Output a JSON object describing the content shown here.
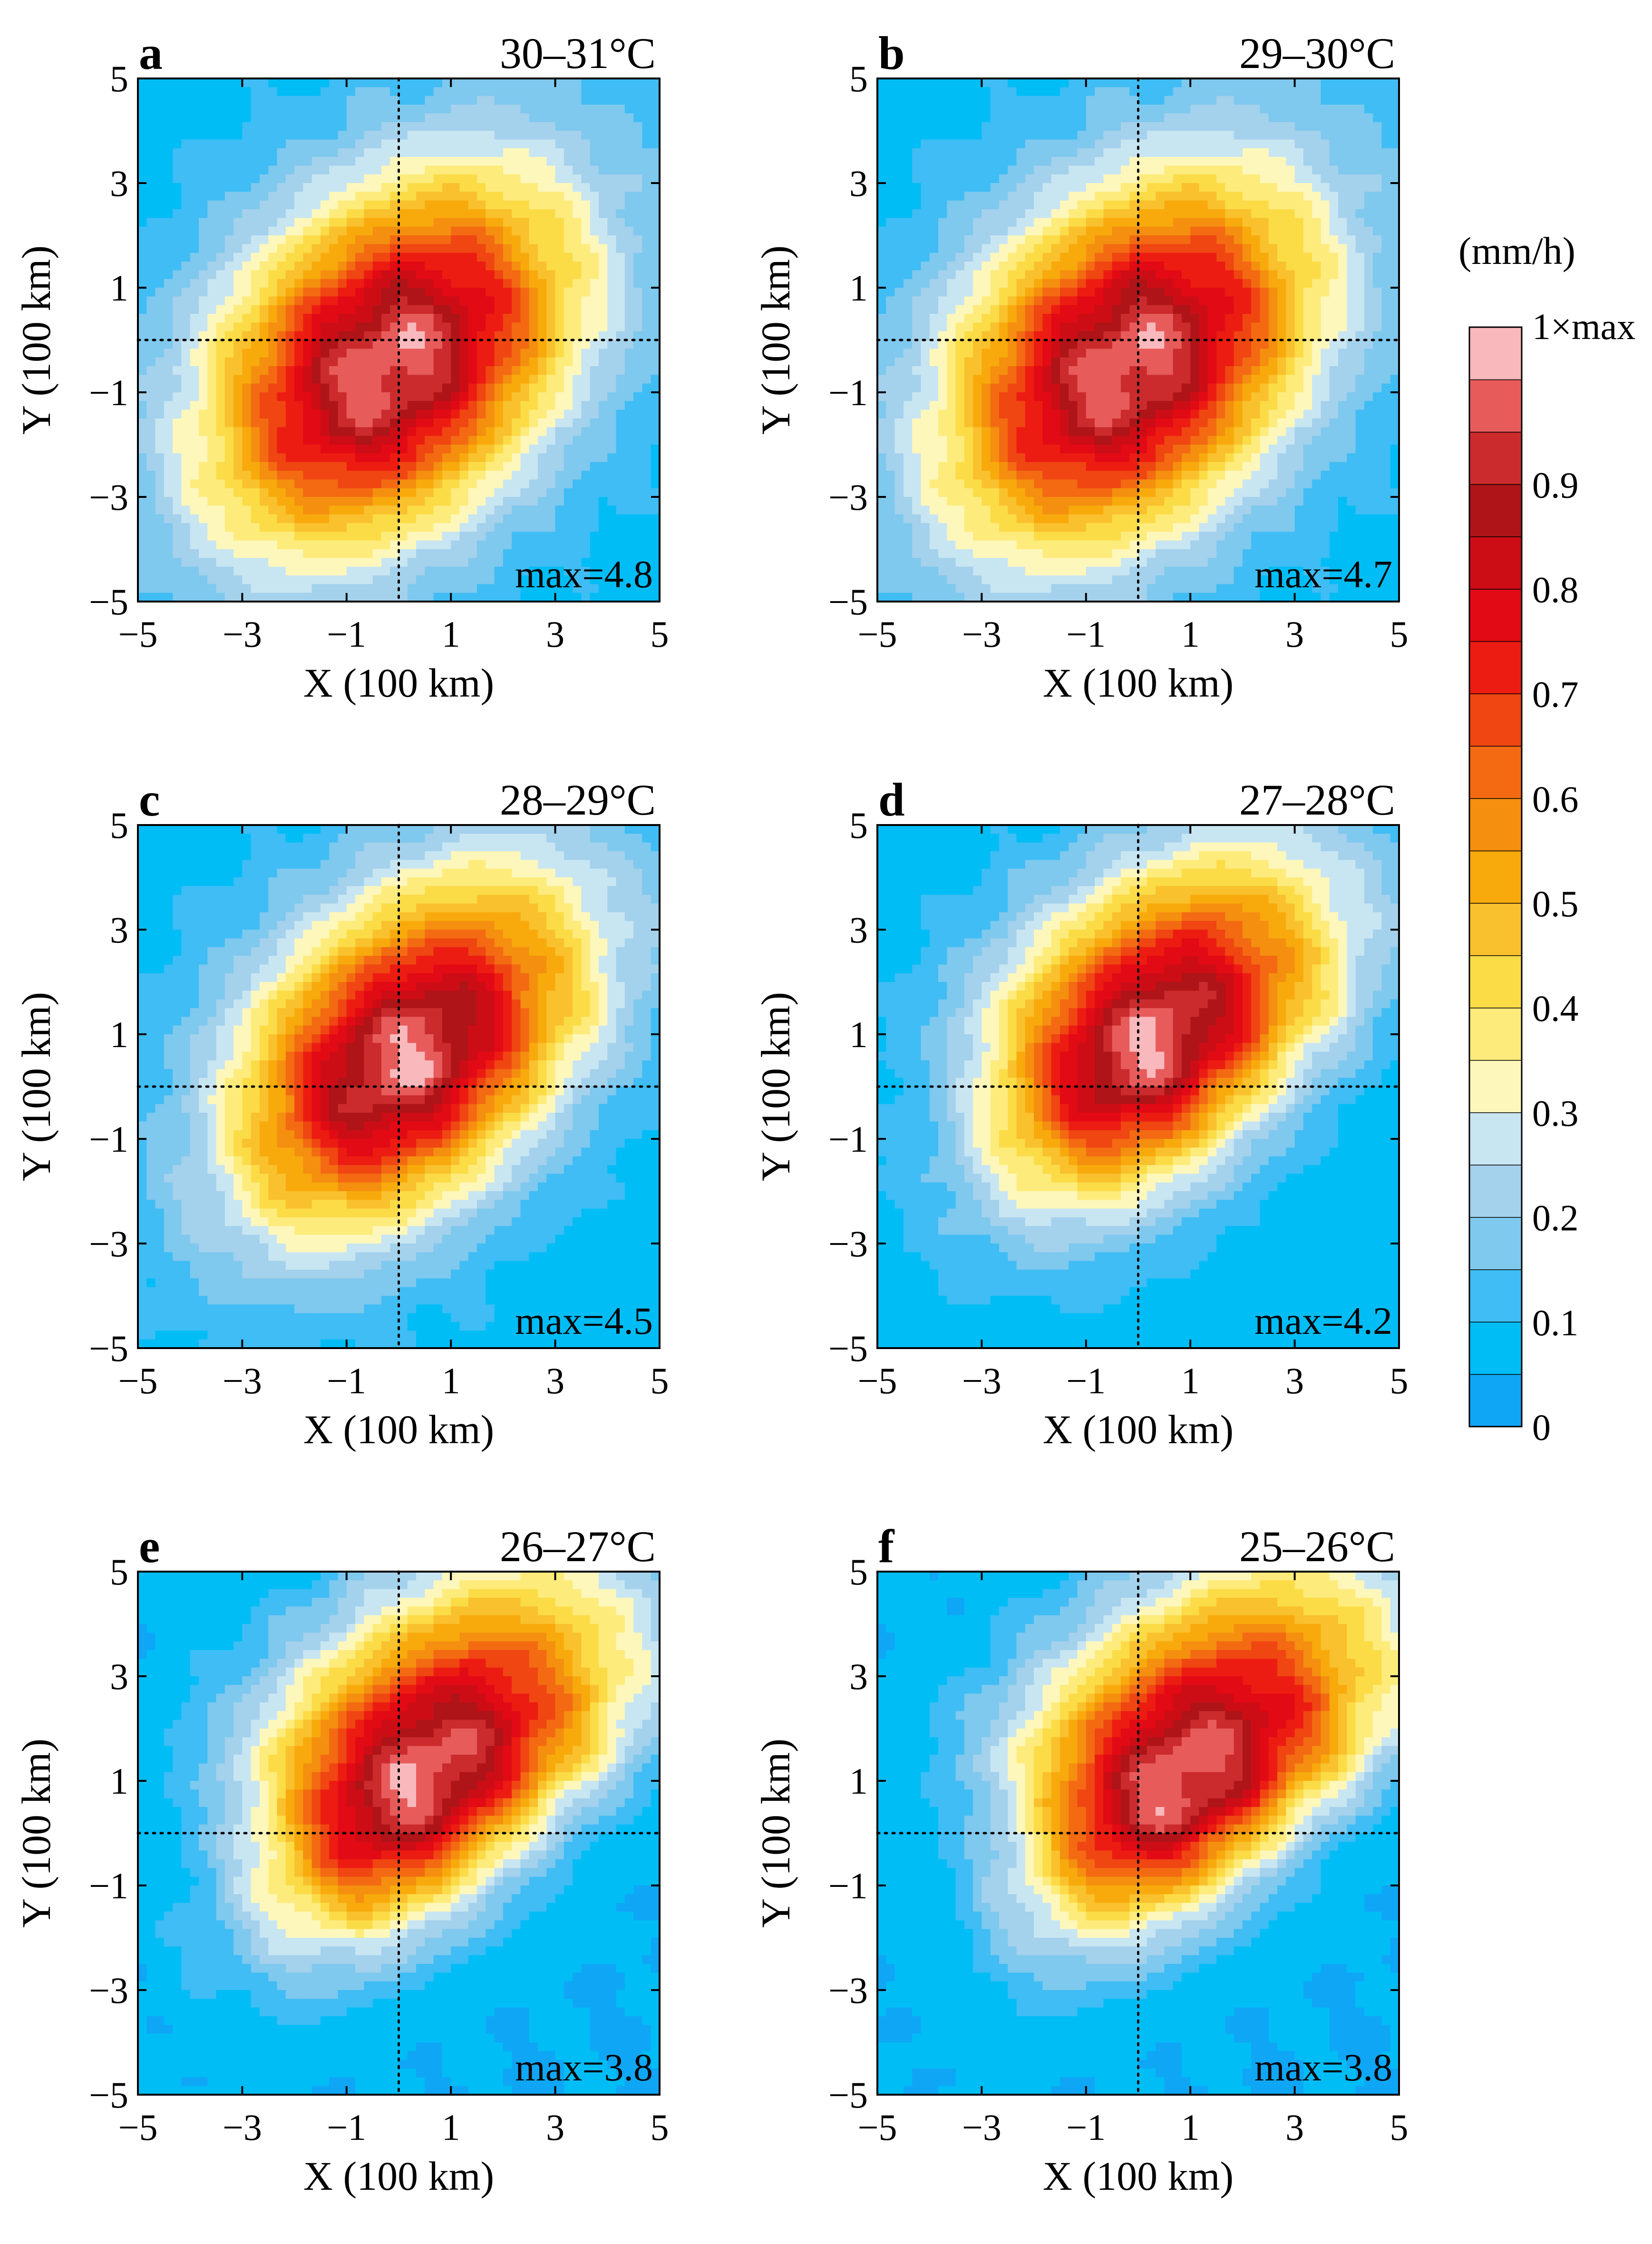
{
  "figure": {
    "colorbar": {
      "unit_label": "(mm/h)",
      "top_label": "1×max",
      "tick_labels": [
        "0.9",
        "0.8",
        "0.7",
        "0.6",
        "0.5",
        "0.4",
        "0.3",
        "0.2",
        "0.1",
        "0"
      ],
      "tick_values": [
        0.9,
        0.8,
        0.7,
        0.6,
        0.5,
        0.4,
        0.3,
        0.2,
        0.1,
        0.0
      ],
      "levels": [
        0.0,
        0.05,
        0.1,
        0.15,
        0.2,
        0.25,
        0.3,
        0.35,
        0.4,
        0.45,
        0.5,
        0.55,
        0.6,
        0.65,
        0.7,
        0.75,
        0.8,
        0.85,
        0.9,
        0.95,
        1.0
      ],
      "colors": [
        "#10a6f6",
        "#00bdf6",
        "#3fbdf4",
        "#7fc8ee",
        "#a4d1ec",
        "#c8e5f2",
        "#fef7bb",
        "#fdeb7c",
        "#fbdc47",
        "#f9c12d",
        "#f8aa0c",
        "#f58f0f",
        "#f36a12",
        "#ef4612",
        "#ed1c12",
        "#e20a14",
        "#cd0d16",
        "#ae1418",
        "#cb2b2c",
        "#e85b5b",
        "#f9b9bc"
      ]
    }
  },
  "chart_data": [
    {
      "type": "contour",
      "panel": "a",
      "title": "30–31°C",
      "max_label": "max=4.8",
      "max_value": 4.8,
      "xlabel": "X (100 km)",
      "ylabel": "Y (100 km)",
      "xlim": [
        -5,
        5
      ],
      "ylim": [
        -5,
        5
      ],
      "x_ticks": [
        -5,
        -3,
        -1,
        1,
        3,
        5
      ],
      "y_ticks": [
        -5,
        -3,
        -1,
        1,
        3,
        5
      ],
      "x_tick_labels": [
        "−5",
        "−3",
        "−1",
        "1",
        "3",
        "5"
      ],
      "y_tick_labels": [
        "−5",
        "−3",
        "−1",
        "1",
        "3",
        "5"
      ],
      "reference_lines": {
        "x": 0,
        "y": 0
      },
      "peak": {
        "x": -0.2,
        "y": -0.5
      },
      "spread": {
        "sx": 2.5,
        "sy": 2.3,
        "tilt_deg": 45,
        "rho": 0.25,
        "skew_up": 0.05
      },
      "background": 0.08
    },
    {
      "type": "contour",
      "panel": "b",
      "title": "29–30°C",
      "max_label": "max=4.7",
      "max_value": 4.7,
      "xlabel": "X (100 km)",
      "ylabel": "Y (100 km)",
      "xlim": [
        -5,
        5
      ],
      "ylim": [
        -5,
        5
      ],
      "x_ticks": [
        -5,
        -3,
        -1,
        1,
        3,
        5
      ],
      "y_ticks": [
        -5,
        -3,
        -1,
        1,
        3,
        5
      ],
      "x_tick_labels": [
        "−5",
        "−3",
        "−1",
        "1",
        "3",
        "5"
      ],
      "y_tick_labels": [
        "−5",
        "−3",
        "−1",
        "1",
        "3",
        "5"
      ],
      "reference_lines": {
        "x": 0,
        "y": 0
      },
      "peak": {
        "x": -0.2,
        "y": -0.5
      },
      "spread": {
        "sx": 2.5,
        "sy": 2.4,
        "tilt_deg": 45,
        "rho": 0.25,
        "skew_up": 0.05
      },
      "background": 0.08
    },
    {
      "type": "contour",
      "panel": "c",
      "title": "28–29°C",
      "max_label": "max=4.5",
      "max_value": 4.5,
      "xlabel": "X (100 km)",
      "ylabel": "Y (100 km)",
      "xlim": [
        -5,
        5
      ],
      "ylim": [
        -5,
        5
      ],
      "x_ticks": [
        -5,
        -3,
        -1,
        1,
        3,
        5
      ],
      "y_ticks": [
        -5,
        -3,
        -1,
        1,
        3,
        5
      ],
      "x_tick_labels": [
        "−5",
        "−3",
        "−1",
        "1",
        "3",
        "5"
      ],
      "y_tick_labels": [
        "−5",
        "−3",
        "−1",
        "1",
        "3",
        "5"
      ],
      "reference_lines": {
        "x": 0,
        "y": 0
      },
      "peak": {
        "x": 0.1,
        "y": 0.5
      },
      "spread": {
        "sx": 2.3,
        "sy": 2.8,
        "tilt_deg": 45,
        "rho": 0.3,
        "skew_up": 0.1
      },
      "background": 0.08
    },
    {
      "type": "contour",
      "panel": "d",
      "title": "27–28°C",
      "max_label": "max=4.2",
      "max_value": 4.2,
      "xlabel": "X (100 km)",
      "ylabel": "Y (100 km)",
      "xlim": [
        -5,
        5
      ],
      "ylim": [
        -5,
        5
      ],
      "x_ticks": [
        -5,
        -3,
        -1,
        1,
        3,
        5
      ],
      "y_ticks": [
        -5,
        -3,
        -1,
        1,
        3,
        5
      ],
      "x_tick_labels": [
        "−5",
        "−3",
        "−1",
        "1",
        "3",
        "5"
      ],
      "y_tick_labels": [
        "−5",
        "−3",
        "−1",
        "1",
        "3",
        "5"
      ],
      "reference_lines": {
        "x": 0,
        "y": 0
      },
      "peak": {
        "x": 0.2,
        "y": 0.8
      },
      "spread": {
        "sx": 2.2,
        "sy": 3.1,
        "tilt_deg": 45,
        "rho": 0.3,
        "skew_up": 0.2
      },
      "background": 0.07
    },
    {
      "type": "contour",
      "panel": "e",
      "title": "26–27°C",
      "max_label": "max=3.8",
      "max_value": 3.8,
      "xlabel": "X (100 km)",
      "ylabel": "Y (100 km)",
      "xlim": [
        -5,
        5
      ],
      "ylim": [
        -5,
        5
      ],
      "x_ticks": [
        -5,
        -3,
        -1,
        1,
        3,
        5
      ],
      "y_ticks": [
        -5,
        -3,
        -1,
        1,
        3,
        5
      ],
      "x_tick_labels": [
        "−5",
        "−3",
        "−1",
        "1",
        "3",
        "5"
      ],
      "y_tick_labels": [
        "−5",
        "−3",
        "−1",
        "1",
        "3",
        "5"
      ],
      "reference_lines": {
        "x": 0,
        "y": 0
      },
      "peak": {
        "x": 0.4,
        "y": 1.0
      },
      "spread": {
        "sx": 2.3,
        "sy": 3.4,
        "tilt_deg": 45,
        "rho": 0.35,
        "skew_up": 0.3
      },
      "background": 0.05
    },
    {
      "type": "contour",
      "panel": "f",
      "title": "25–26°C",
      "max_label": "max=3.8",
      "max_value": 3.8,
      "xlabel": "X (100 km)",
      "ylabel": "Y (100 km)",
      "xlim": [
        -5,
        5
      ],
      "ylim": [
        -5,
        5
      ],
      "x_ticks": [
        -5,
        -3,
        -1,
        1,
        3,
        5
      ],
      "y_ticks": [
        -5,
        -3,
        -1,
        1,
        3,
        5
      ],
      "x_tick_labels": [
        "−5",
        "−3",
        "−1",
        "1",
        "3",
        "5"
      ],
      "y_tick_labels": [
        "−5",
        "−3",
        "−1",
        "1",
        "3",
        "5"
      ],
      "reference_lines": {
        "x": 0,
        "y": 0
      },
      "peak": {
        "x": 0.8,
        "y": 1.0
      },
      "spread": {
        "sx": 2.3,
        "sy": 3.5,
        "tilt_deg": 45,
        "rho": 0.35,
        "skew_up": 0.35
      },
      "background": 0.05
    }
  ]
}
